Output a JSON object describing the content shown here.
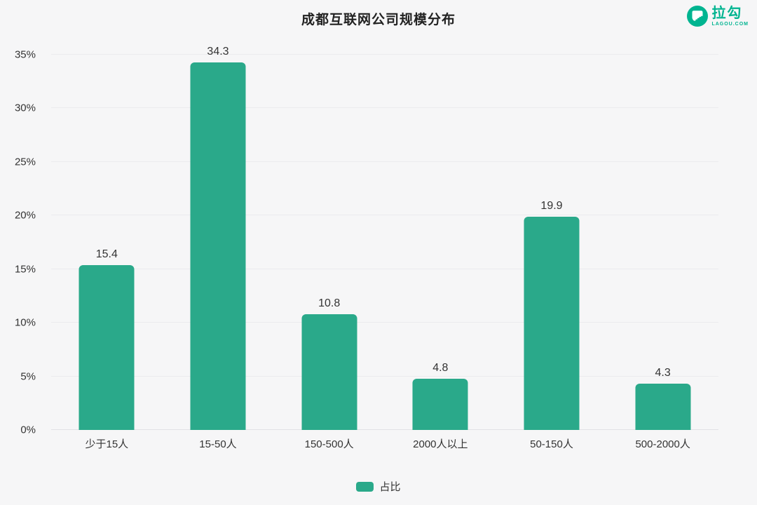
{
  "title": "成都互联网公司规模分布",
  "logo": {
    "name": "拉勾",
    "domain": "LAGOU.COM"
  },
  "legend": {
    "label": "占比"
  },
  "colors": {
    "bar": "#2aa98a",
    "logo_green": "#00b490",
    "text": "#333333"
  },
  "chart_data": {
    "type": "bar",
    "categories": [
      "少于15人",
      "15-50人",
      "150-500人",
      "2000人以上",
      "50-150人",
      "500-2000人"
    ],
    "values": [
      15.4,
      34.3,
      10.8,
      4.8,
      19.9,
      4.3
    ],
    "series": [
      {
        "name": "占比",
        "values": [
          15.4,
          34.3,
          10.8,
          4.8,
          19.9,
          4.3
        ]
      }
    ],
    "title": "成都互联网公司规模分布",
    "xlabel": "",
    "ylabel": "",
    "ylim": [
      0,
      35
    ],
    "ytick_step": 5,
    "ytick_suffix": "%",
    "grid": true,
    "legend_position": "bottom",
    "data_labels": true
  }
}
